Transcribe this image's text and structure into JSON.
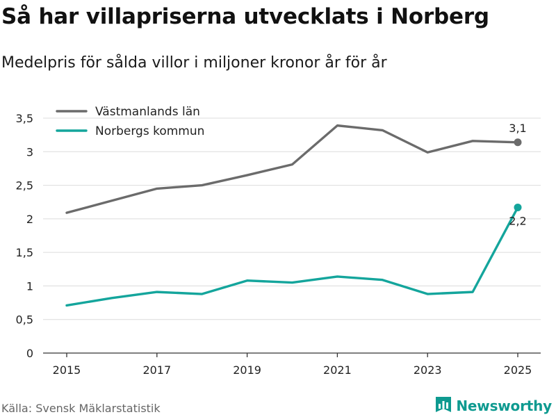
{
  "title": "Så har villapriserna utvecklats i Norberg",
  "subtitle": "Medelpris för sålda villor i miljoner kronor år för år",
  "source": "Källa: Svensk Mäklarstatistik",
  "brand": {
    "name": "Newsworthy",
    "logo_icon": "bar-chart-flag-icon",
    "color": "#0e9a90"
  },
  "chart_data": {
    "type": "line",
    "x": [
      2015,
      2016,
      2017,
      2018,
      2019,
      2020,
      2021,
      2022,
      2023,
      2024,
      2025
    ],
    "xticks": [
      "2015",
      "2017",
      "2019",
      "2021",
      "2023",
      "2025"
    ],
    "yticks": [
      "0",
      "0,5",
      "1",
      "1,5",
      "2",
      "2,5",
      "3",
      "3,5"
    ],
    "ylim": [
      0,
      3.5
    ],
    "grid": true,
    "legend": "top-left",
    "series": [
      {
        "name": "Västmanlands län",
        "color": "#6b6b6b",
        "values": [
          2.09,
          2.27,
          2.45,
          2.5,
          2.65,
          2.81,
          3.39,
          3.32,
          2.99,
          3.16,
          3.14
        ],
        "end_label": "3,1"
      },
      {
        "name": "Norbergs kommun",
        "color": "#14a59c",
        "values": [
          0.71,
          0.82,
          0.91,
          0.88,
          1.08,
          1.05,
          1.14,
          1.09,
          0.88,
          0.91,
          2.17
        ],
        "end_label": "2,2"
      }
    ]
  }
}
